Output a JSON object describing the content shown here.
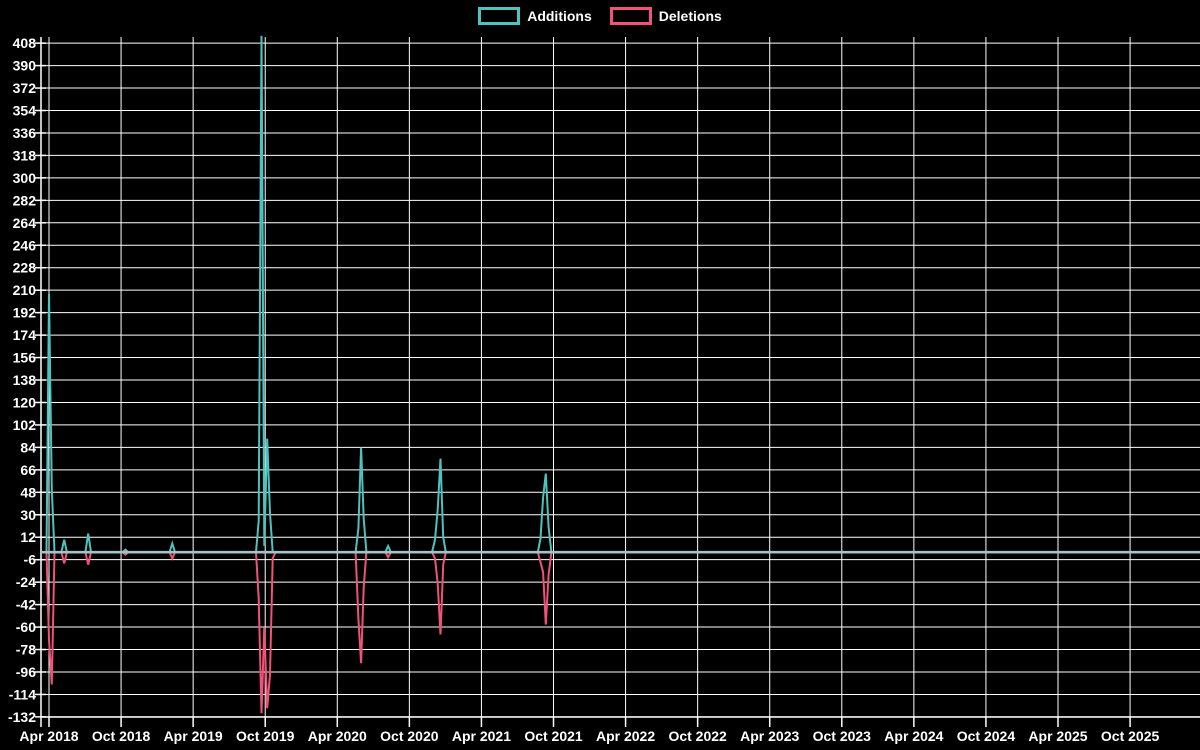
{
  "chart_data": {
    "type": "line",
    "title": "",
    "background": "#000000",
    "grid": true,
    "grid_color": "#ffffff",
    "text_color": "#ffffff",
    "zero_line_color": "#a6c2c8",
    "legend_position": "top-center",
    "x_axis": {
      "start_month": "2018-04",
      "months_per_tick": 6,
      "tick_labels": [
        "Apr 2018",
        "Oct 2018",
        "Apr 2019",
        "Oct 2019",
        "Apr 2020",
        "Oct 2020",
        "Apr 2021",
        "Oct 2021",
        "Apr 2022",
        "Oct 2022",
        "Apr 2023",
        "Oct 2023",
        "Apr 2024",
        "Oct 2024",
        "Apr 2025",
        "Oct 2025"
      ]
    },
    "y_axis": {
      "min": -132,
      "max": 408,
      "step": 18,
      "tick_labels": [
        "408",
        "390",
        "372",
        "354",
        "336",
        "318",
        "300",
        "282",
        "264",
        "246",
        "228",
        "210",
        "192",
        "174",
        "156",
        "138",
        "120",
        "102",
        "84",
        "66",
        "48",
        "30",
        "12",
        "-6",
        "-24",
        "-42",
        "-60",
        "-78",
        "-96",
        "-114",
        "-132"
      ]
    },
    "series": [
      {
        "name": "Additions",
        "color": "#4dc2bf",
        "points": [
          [
            "2018-03-25",
            0
          ],
          [
            "2018-04-01",
            207
          ],
          [
            "2018-04-08",
            50
          ],
          [
            "2018-04-15",
            0
          ],
          [
            "2018-05-02",
            0
          ],
          [
            "2018-05-09",
            10
          ],
          [
            "2018-05-16",
            0
          ],
          [
            "2018-07-02",
            0
          ],
          [
            "2018-07-09",
            15
          ],
          [
            "2018-07-16",
            0
          ],
          [
            "2018-10-05",
            0
          ],
          [
            "2018-10-12",
            2
          ],
          [
            "2018-10-19",
            0
          ],
          [
            "2019-02-02",
            0
          ],
          [
            "2019-02-09",
            7
          ],
          [
            "2019-02-16",
            0
          ],
          [
            "2019-09-08",
            0
          ],
          [
            "2019-09-15",
            25
          ],
          [
            "2019-09-22",
            414
          ],
          [
            "2019-09-29",
            5
          ],
          [
            "2019-10-06",
            91
          ],
          [
            "2019-10-13",
            31
          ],
          [
            "2019-10-20",
            0
          ],
          [
            "2020-05-17",
            0
          ],
          [
            "2020-05-24",
            19
          ],
          [
            "2020-05-31",
            84
          ],
          [
            "2020-06-07",
            27
          ],
          [
            "2020-06-14",
            0
          ],
          [
            "2020-08-01",
            0
          ],
          [
            "2020-08-08",
            5
          ],
          [
            "2020-08-15",
            0
          ],
          [
            "2020-11-28",
            0
          ],
          [
            "2020-12-05",
            10
          ],
          [
            "2020-12-12",
            34
          ],
          [
            "2020-12-19",
            75
          ],
          [
            "2020-12-26",
            12
          ],
          [
            "2021-01-02",
            0
          ],
          [
            "2021-08-22",
            0
          ],
          [
            "2021-08-29",
            11
          ],
          [
            "2021-09-05",
            44
          ],
          [
            "2021-09-12",
            63
          ],
          [
            "2021-09-19",
            20
          ],
          [
            "2021-09-26",
            0
          ],
          [
            "2026-04-01",
            0
          ]
        ]
      },
      {
        "name": "Deletions",
        "color": "#f0527a",
        "points": [
          [
            "2018-03-25",
            0
          ],
          [
            "2018-04-01",
            -70
          ],
          [
            "2018-04-08",
            -106
          ],
          [
            "2018-04-15",
            0
          ],
          [
            "2018-05-02",
            0
          ],
          [
            "2018-05-09",
            -9
          ],
          [
            "2018-05-16",
            0
          ],
          [
            "2018-07-02",
            0
          ],
          [
            "2018-07-09",
            -10
          ],
          [
            "2018-07-16",
            0
          ],
          [
            "2018-10-05",
            0
          ],
          [
            "2018-10-12",
            -2
          ],
          [
            "2018-10-19",
            0
          ],
          [
            "2019-02-02",
            0
          ],
          [
            "2019-02-09",
            -5
          ],
          [
            "2019-02-16",
            0
          ],
          [
            "2019-09-08",
            0
          ],
          [
            "2019-09-15",
            -37
          ],
          [
            "2019-09-22",
            -129
          ],
          [
            "2019-09-29",
            -60
          ],
          [
            "2019-10-06",
            -125
          ],
          [
            "2019-10-13",
            -98
          ],
          [
            "2019-10-20",
            -5
          ],
          [
            "2019-10-27",
            0
          ],
          [
            "2020-05-17",
            0
          ],
          [
            "2020-05-24",
            -53
          ],
          [
            "2020-05-31",
            -89
          ],
          [
            "2020-06-07",
            -28
          ],
          [
            "2020-06-14",
            0
          ],
          [
            "2020-08-01",
            0
          ],
          [
            "2020-08-08",
            -4
          ],
          [
            "2020-08-15",
            0
          ],
          [
            "2020-11-28",
            0
          ],
          [
            "2020-12-05",
            -5
          ],
          [
            "2020-12-12",
            -25
          ],
          [
            "2020-12-19",
            -66
          ],
          [
            "2020-12-26",
            -10
          ],
          [
            "2021-01-02",
            0
          ],
          [
            "2021-08-22",
            0
          ],
          [
            "2021-08-29",
            -8
          ],
          [
            "2021-09-05",
            -16
          ],
          [
            "2021-09-12",
            -58
          ],
          [
            "2021-09-19",
            -18
          ],
          [
            "2021-09-26",
            0
          ],
          [
            "2026-04-01",
            0
          ]
        ]
      }
    ]
  }
}
